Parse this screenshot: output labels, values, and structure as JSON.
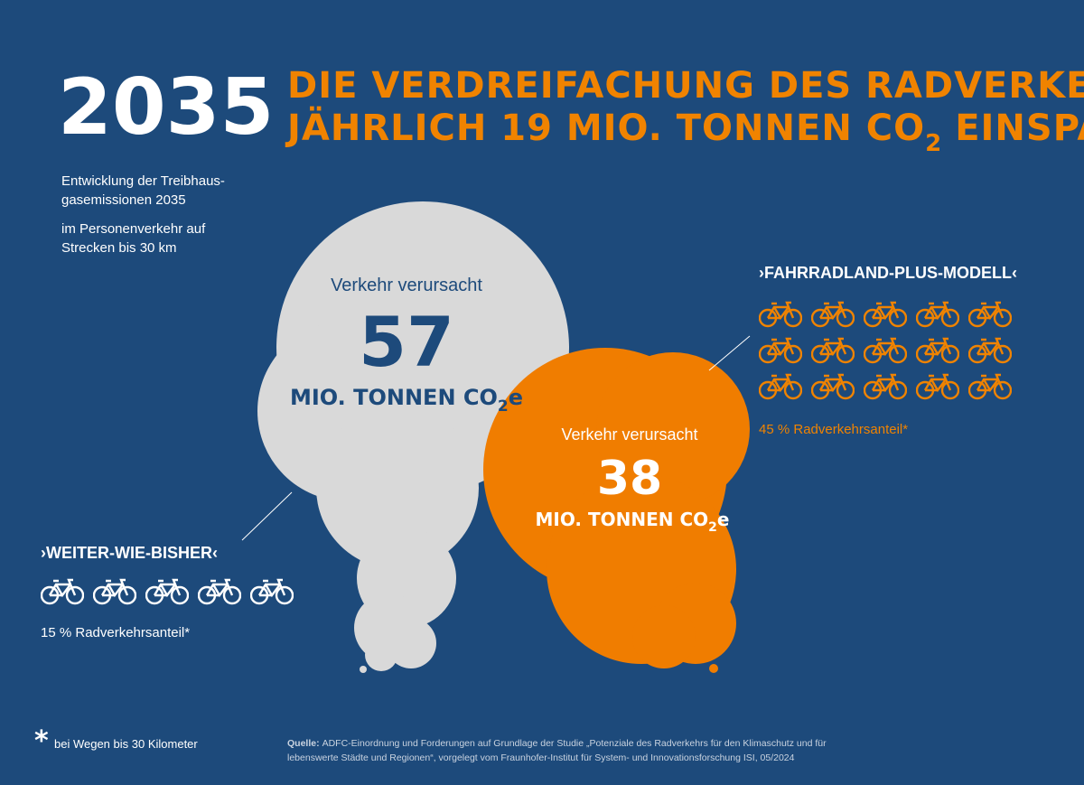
{
  "header": {
    "year": "2035",
    "headline_line1": "DIE VERDREIFACHUNG DES RADVERKEHRS KANN",
    "headline_line2": "JÄHRLICH 19 MIO. TONNEN CO",
    "headline_sub": "2",
    "headline_end": "EINSPAREN"
  },
  "intro": [
    "Entwicklung der Treibhaus-",
    "gasemissionen 2035",
    "im Personenverkehr auf",
    "Strecken bis 30 km"
  ],
  "scenario_a": {
    "label": "›WEITER-WIE-BISHER‹",
    "share": "15 % Radverkehrsanteil*",
    "cloud_intro": "Verkehr verursacht",
    "cloud_value": "57",
    "cloud_unit": "MIO. TONNEN CO",
    "cloud_sub": "2",
    "cloud_end": "e"
  },
  "scenario_b": {
    "label": "›FAHRRADLAND-PLUS-MODELL‹",
    "share": "45 % Radverkehrsanteil*",
    "cloud_intro": "Verkehr verursacht",
    "cloud_value": "38",
    "cloud_unit": "MIO. TONNEN CO",
    "cloud_sub": "2",
    "cloud_end": "e"
  },
  "footnote": {
    "mark": "*",
    "text": "bei Wegen bis 30 Kilometer"
  },
  "source": {
    "label": "Quelle:",
    "line1": "ADFC-Einordnung und Forderungen auf Grundlage der Studie „Potenziale des Radverkehrs für den Klimaschutz und für",
    "line2": "lebenswerte Städte und Regionen“, vorgelegt vom Fraunhofer-Institut für System- und Innovationsforschung ISI, 05/2024"
  }
}
